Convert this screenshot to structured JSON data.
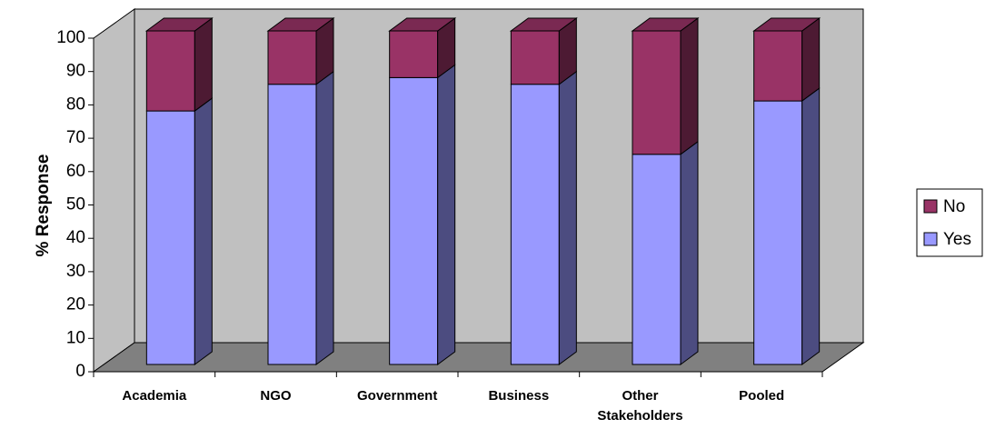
{
  "chart_data": {
    "type": "bar",
    "stacked": true,
    "three_d": true,
    "categories": [
      "Academia",
      "NGO",
      "Government",
      "Business",
      "Other Stakeholders",
      "Pooled"
    ],
    "series": [
      {
        "name": "Yes",
        "values": [
          76,
          84,
          86,
          84,
          63,
          79
        ],
        "color": "#9999ff"
      },
      {
        "name": "No",
        "values": [
          24,
          16,
          14,
          16,
          37,
          21
        ],
        "color": "#993366"
      }
    ],
    "title": "",
    "xlabel": "",
    "ylabel": "% Response",
    "ylim": [
      0,
      100
    ],
    "yticks": [
      0,
      10,
      20,
      30,
      40,
      50,
      60,
      70,
      80,
      90,
      100
    ],
    "grid": false,
    "legend_position": "right",
    "legend_order": [
      "No",
      "Yes"
    ],
    "colors": {
      "back_wall": "#c0c0c0",
      "floor": "#808080",
      "yes_side": "#4c4c80",
      "yes_top": "#7a7acc",
      "no_side": "#4d1a33",
      "no_top": "#7a2952"
    }
  }
}
